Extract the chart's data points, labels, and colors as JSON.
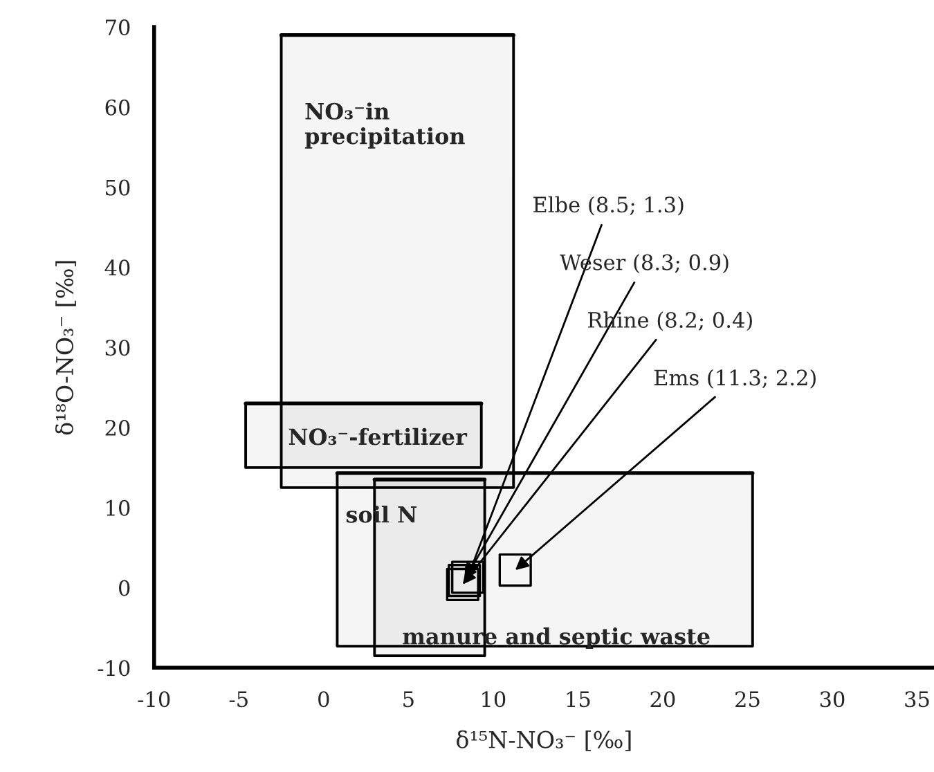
{
  "chart_data": {
    "type": "scatter",
    "xlabel": "δ¹⁵N-NO₃⁻ [‰]",
    "ylabel": "δ¹⁸O-NO₃⁻ [‰]",
    "xlim": [
      -10,
      36
    ],
    "ylim": [
      -10,
      70
    ],
    "xticks": [
      -10,
      -5,
      0,
      5,
      10,
      15,
      20,
      25,
      30,
      35
    ],
    "yticks": [
      -10,
      0,
      10,
      20,
      30,
      40,
      50,
      60,
      70
    ],
    "grid": false,
    "legend": false,
    "series": [
      {
        "type": "line",
        "color": "#000000",
        "x": [
          -2.5,
          11.2
        ],
        "values": [
          69,
          69
        ],
        "lower": [
          12.5,
          12.5
        ],
        "upper": [
          69,
          69
        ]
      },
      {
        "type": "line",
        "color": "#000000",
        "x": [
          -4.6,
          9.3
        ],
        "values": [
          23,
          23
        ],
        "lower": [
          15,
          15
        ],
        "upper": [
          23,
          23
        ]
      },
      {
        "type": "line",
        "color": "#000000",
        "x": [
          0.8,
          25.3
        ],
        "values": [
          14.3,
          14.3
        ],
        "lower": [
          -7.3,
          -7.3
        ],
        "upper": [
          14.3,
          14.3
        ]
      },
      {
        "type": "line",
        "color": "#000000",
        "x": [
          3,
          9.5
        ],
        "values": [
          13.5,
          13.5
        ],
        "lower": [
          -8.5,
          -8.5
        ],
        "upper": [
          13.5,
          13.5
        ]
      },
      {
        "marker": "square",
        "color": "#000000",
        "x": [
          8.5,
          8.3,
          8.2,
          11.3
        ],
        "values": [
          1.3,
          0.9,
          0.4,
          2.2
        ]
      }
    ],
    "annotations": [
      "NO₃⁻in\nprecipitation",
      "NO₃⁻-fertilizer",
      "soil N",
      "manure and septic waste",
      {
        "text": "Elbe (8.5; 1.3)",
        "x": 8.5,
        "y": 1.3
      },
      {
        "text": "Weser (8.3; 0.9)",
        "x": 8.3,
        "y": 0.9
      },
      {
        "text": "Rhine (8.2; 0.4)",
        "x": 8.2,
        "y": 0.4
      },
      {
        "text": "Ems (11.3; 2.2)",
        "x": 11.3,
        "y": 2.2
      }
    ]
  }
}
